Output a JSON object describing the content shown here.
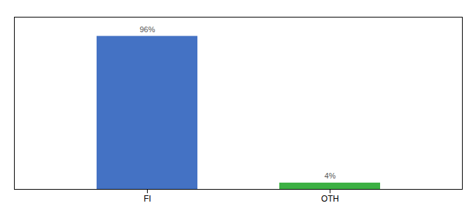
{
  "chart_data": {
    "type": "bar",
    "categories": [
      "FI",
      "OTH"
    ],
    "values": [
      96,
      4
    ],
    "value_labels": [
      "96%",
      "4%"
    ],
    "colors": [
      "#4472c4",
      "#3cb043"
    ],
    "ylim": [
      0,
      108
    ],
    "data_labels": true,
    "tick_labels": "x"
  }
}
